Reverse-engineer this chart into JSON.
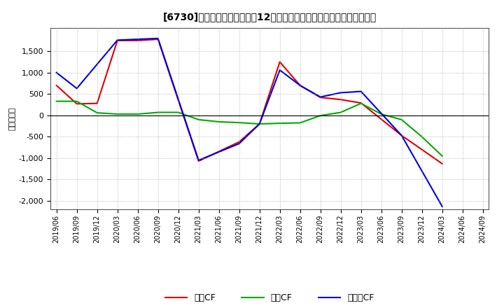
{
  "title": "[6730]　キャッシュフローの12か月移動合計の対前年同期増減額の推移",
  "ylabel": "（百万円）",
  "background_color": "#ffffff",
  "plot_bg_color": "#ffffff",
  "grid_color": "#aaaaaa",
  "x_labels": [
    "2019/06",
    "2019/09",
    "2019/12",
    "2020/03",
    "2020/06",
    "2020/09",
    "2020/12",
    "2021/03",
    "2021/06",
    "2021/09",
    "2021/12",
    "2022/03",
    "2022/06",
    "2022/09",
    "2022/12",
    "2023/03",
    "2023/06",
    "2023/09",
    "2023/12",
    "2024/03",
    "2024/06",
    "2024/09"
  ],
  "operating_cf_color": "#dd0000",
  "investing_cf_color": "#00aa00",
  "free_cf_color": "#0000dd",
  "ylim": [
    -2200,
    2050
  ],
  "yticks": [
    -2000,
    -1500,
    -1000,
    -500,
    0,
    500,
    1000,
    1500
  ],
  "legend_labels": [
    "営業CF",
    "投資CF",
    "フリーCF"
  ],
  "operating_cf_x": [
    0,
    1,
    2,
    3,
    4,
    5,
    7,
    9,
    10,
    11,
    12,
    13,
    14,
    15,
    17,
    19
  ],
  "operating_cf_y": [
    700,
    270,
    280,
    1750,
    1750,
    1780,
    -1070,
    -620,
    -200,
    1250,
    700,
    420,
    370,
    290,
    -470,
    -1130
  ],
  "investing_cf_x": [
    0,
    1,
    2,
    3,
    4,
    5,
    6,
    7,
    8,
    9,
    10,
    11,
    12,
    13,
    14,
    15,
    16,
    17,
    18,
    19
  ],
  "investing_cf_y": [
    330,
    330,
    60,
    30,
    30,
    70,
    70,
    -100,
    -150,
    -170,
    -200,
    -185,
    -175,
    -5,
    70,
    280,
    30,
    -100,
    -500,
    -950
  ],
  "free_cf_x": [
    0,
    1,
    3,
    4,
    5,
    7,
    9,
    10,
    11,
    12,
    13,
    14,
    15,
    17,
    19
  ],
  "free_cf_y": [
    1000,
    630,
    1760,
    1780,
    1800,
    -1050,
    -660,
    -200,
    1060,
    700,
    430,
    530,
    560,
    -470,
    -2130
  ]
}
